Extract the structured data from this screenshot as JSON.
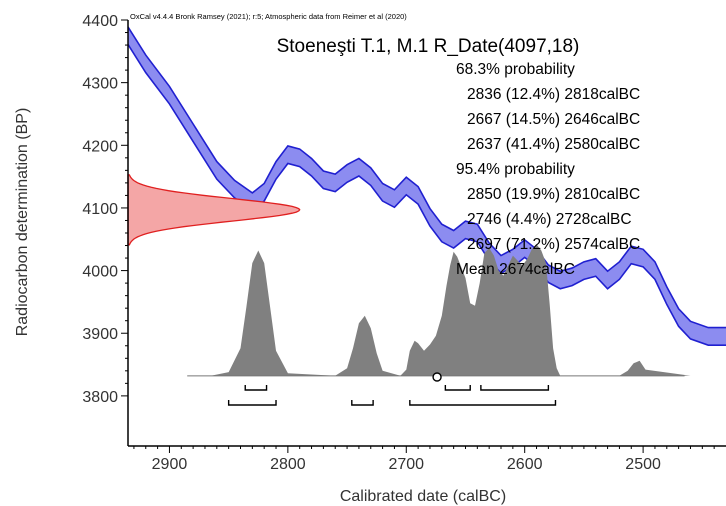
{
  "chart_data": {
    "type": "area",
    "header": "OxCal v4.4.4 Bronk Ramsey (2021); r:5; Atmospheric data from Reimer et al (2020)",
    "title": "Stoeneşti T.1, M.1 R_Date(4097,18)",
    "xlabel": "Calibrated date (calBC)",
    "ylabel": "Radiocarbon determination (BP)",
    "xlim": [
      2935,
      2430
    ],
    "ylim": [
      3720,
      4400
    ],
    "x_ticks": [
      2900,
      2800,
      2700,
      2600,
      2500
    ],
    "y_ticks": [
      3800,
      3900,
      4000,
      4100,
      4200,
      4300,
      4400
    ],
    "summary_lines": [
      "68.3% probability",
      "2836 (12.4%) 2818calBC",
      "2667 (14.5%) 2646calBC",
      "2637 (41.4%) 2580calBC",
      "95.4% probability",
      "2850 (19.9%) 2810calBC",
      "2746 (4.4%) 2728calBC",
      "2697 (71.2%) 2574calBC",
      "Mean 2674calBC"
    ],
    "radiocarbon_date": {
      "mean_bp": 4097,
      "error_bp": 18
    },
    "calibration_curve": {
      "x": [
        2935,
        2920,
        2900,
        2880,
        2860,
        2845,
        2830,
        2820,
        2810,
        2800,
        2790,
        2780,
        2770,
        2760,
        2750,
        2740,
        2730,
        2720,
        2710,
        2700,
        2690,
        2680,
        2670,
        2660,
        2650,
        2640,
        2630,
        2620,
        2610,
        2600,
        2590,
        2580,
        2570,
        2560,
        2550,
        2540,
        2530,
        2520,
        2510,
        2500,
        2490,
        2480,
        2470,
        2460,
        2445,
        2430
      ],
      "y": [
        4375,
        4330,
        4280,
        4220,
        4160,
        4130,
        4110,
        4125,
        4160,
        4185,
        4180,
        4165,
        4145,
        4140,
        4155,
        4165,
        4150,
        4125,
        4115,
        4135,
        4120,
        4085,
        4060,
        4050,
        4065,
        4060,
        4030,
        4010,
        4020,
        4035,
        4020,
        3995,
        3985,
        3990,
        4000,
        4005,
        3985,
        4000,
        4025,
        4020,
        4000,
        3960,
        3925,
        3905,
        3895,
        3895
      ],
      "width_bp": 14
    },
    "posterior": {
      "x": [
        2865,
        2850,
        2840,
        2835,
        2830,
        2825,
        2820,
        2815,
        2810,
        2800,
        2760,
        2750,
        2745,
        2740,
        2735,
        2730,
        2725,
        2720,
        2705,
        2700,
        2697,
        2693,
        2690,
        2685,
        2680,
        2675,
        2670,
        2666,
        2663,
        2660,
        2657,
        2654,
        2650,
        2646,
        2642,
        2638,
        2634,
        2630,
        2626,
        2622,
        2618,
        2614,
        2610,
        2606,
        2602,
        2598,
        2594,
        2590,
        2586,
        2582,
        2579,
        2576,
        2573,
        2570,
        2565,
        2520,
        2513,
        2508,
        2503,
        2498,
        2460
      ],
      "y": [
        0,
        0.03,
        0.22,
        0.55,
        0.9,
        1.0,
        0.9,
        0.55,
        0.2,
        0.02,
        0,
        0.06,
        0.22,
        0.42,
        0.48,
        0.38,
        0.18,
        0.04,
        0,
        0.05,
        0.2,
        0.28,
        0.26,
        0.2,
        0.25,
        0.32,
        0.48,
        0.72,
        0.88,
        0.99,
        0.95,
        0.88,
        0.78,
        0.58,
        0.56,
        0.74,
        0.98,
        1.02,
        0.96,
        0.84,
        0.8,
        0.88,
        0.96,
        0.92,
        0.88,
        0.93,
        1.01,
        1.05,
        1.0,
        0.9,
        0.58,
        0.22,
        0.06,
        0,
        0,
        0,
        0.04,
        0.1,
        0.12,
        0.05,
        0
      ],
      "baseline_bp": 3832,
      "peak_height_bp": 200
    },
    "ranges_68": [
      [
        2836,
        2818
      ],
      [
        2667,
        2646
      ],
      [
        2637,
        2580
      ]
    ],
    "ranges_95": [
      [
        2850,
        2810
      ],
      [
        2746,
        2728
      ],
      [
        2697,
        2574
      ]
    ],
    "mean_calbc": 2674,
    "colors": {
      "curve_fill": "#8c8cf0",
      "curve_line": "#2020d0",
      "likelihood_fill": "#f4a6a6",
      "likelihood_line": "#e02020",
      "posterior_fill": "#808080"
    }
  }
}
